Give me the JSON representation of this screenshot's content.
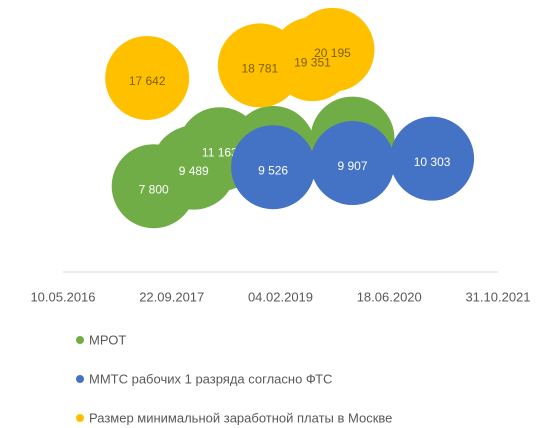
{
  "chart_data": {
    "type": "bubble",
    "xlim": [
      "2016-05-10",
      "2021-10-31"
    ],
    "xticks": [
      {
        "value": "2016-05-10",
        "label": "10.05.2016"
      },
      {
        "value": "2017-09-22",
        "label": "22.09.2017"
      },
      {
        "value": "2019-02-04",
        "label": "04.02.2019"
      },
      {
        "value": "2020-06-18",
        "label": "18.06.2020"
      },
      {
        "value": "2021-10-31",
        "label": "31.10.2021"
      }
    ],
    "ylim": [
      0,
      22000
    ],
    "legend": "bottom",
    "series": [
      {
        "name": "МРОТ",
        "color": "#70ad47",
        "x": [
          "2017-07-01",
          "2018-01-01",
          "2018-05-01",
          "2019-01-01",
          "2020-01-01"
        ],
        "values": [
          7800,
          9489,
          11163,
          11280,
          12130
        ],
        "value_labels": [
          "7 800",
          "9 489",
          "11 163",
          "11 280",
          "12 130"
        ]
      },
      {
        "name": "ММТС рабочих 1 разряда согласно ФТС",
        "color": "#4472c4",
        "x": [
          "2019-01-01",
          "2020-01-01",
          "2021-01-01"
        ],
        "values": [
          9526,
          9907,
          10303
        ],
        "value_labels": [
          "9 526",
          "9 907",
          "10 303"
        ]
      },
      {
        "name": "Размер минимальной заработной платы в Москве",
        "color": "#ffc000",
        "x": [
          "2017-06-01",
          "2018-11-01",
          "2019-07-01",
          "2019-10-01"
        ],
        "values": [
          17642,
          18781,
          19351,
          20195
        ],
        "value_labels": [
          "17 642",
          "18 781",
          "19 351",
          "20 195"
        ]
      }
    ]
  }
}
